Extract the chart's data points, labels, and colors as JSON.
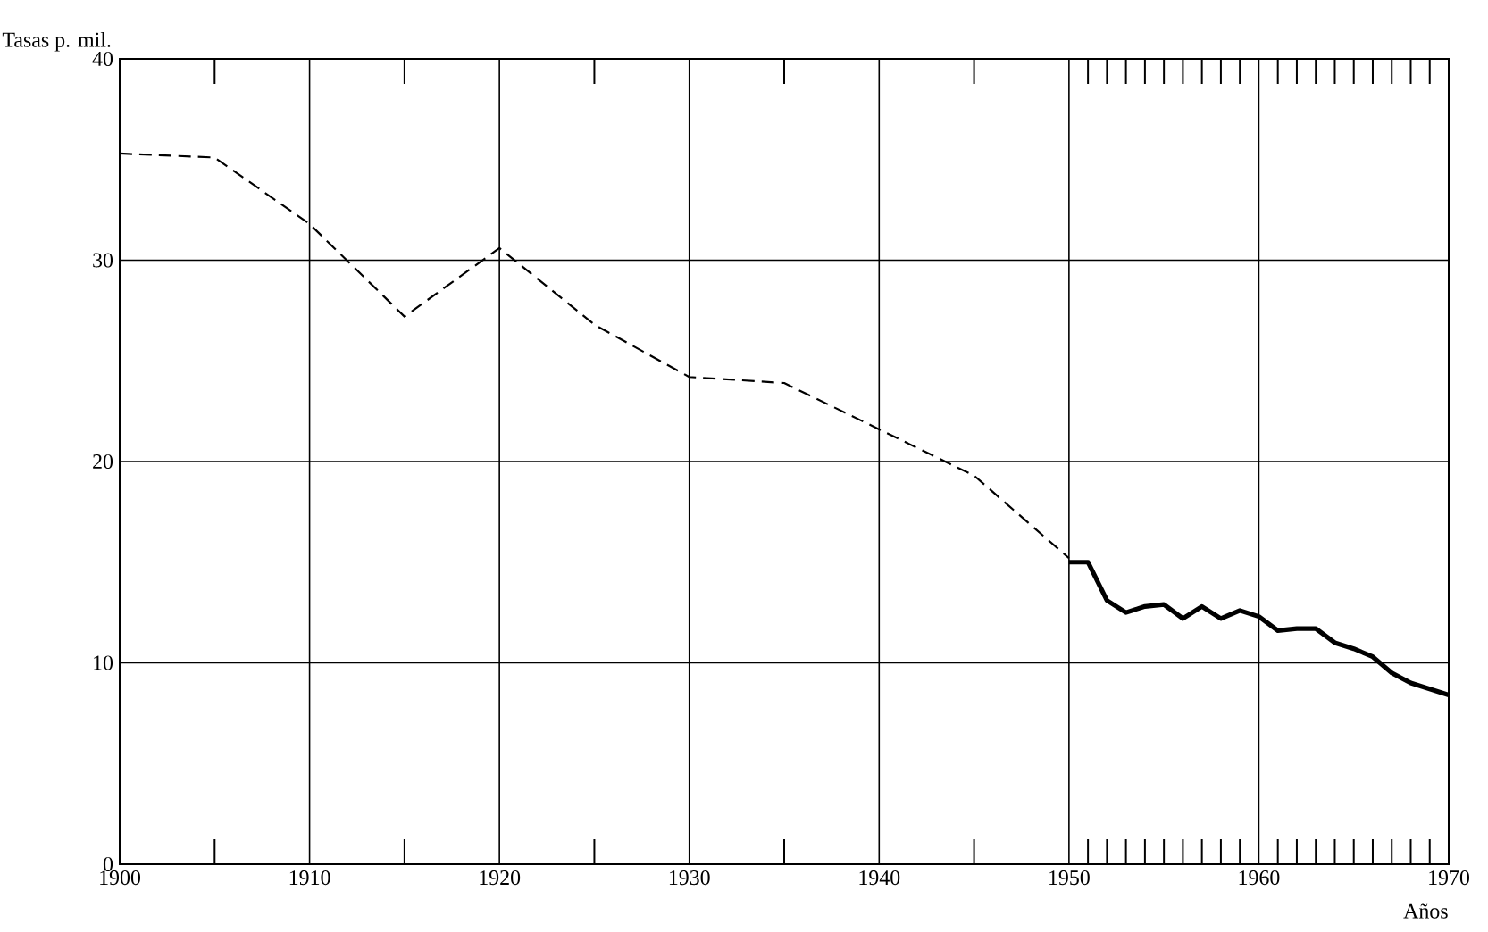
{
  "chart_data": {
    "type": "line",
    "xlabel": "Años",
    "ylabel": "Tasas p. mil.",
    "xlim": [
      1900,
      1970
    ],
    "ylim": [
      0,
      40
    ],
    "xticks": [
      1900,
      1910,
      1920,
      1930,
      1940,
      1950,
      1960,
      1970,
      {
        "value": 1905,
        "label": null
      },
      {
        "value": 1915,
        "label": null
      },
      {
        "value": 1925,
        "label": null
      },
      {
        "value": 1935,
        "label": null
      },
      {
        "value": 1945,
        "label": null
      },
      {
        "value": 1951,
        "label": null
      },
      {
        "value": 1952,
        "label": null
      },
      {
        "value": 1953,
        "label": null
      },
      {
        "value": 1954,
        "label": null
      },
      {
        "value": 1955,
        "label": null
      },
      {
        "value": 1956,
        "label": null
      },
      {
        "value": 1957,
        "label": null
      },
      {
        "value": 1958,
        "label": null
      },
      {
        "value": 1959,
        "label": null
      },
      {
        "value": 1961,
        "label": null
      },
      {
        "value": 1962,
        "label": null
      },
      {
        "value": 1963,
        "label": null
      },
      {
        "value": 1964,
        "label": null
      },
      {
        "value": 1965,
        "label": null
      },
      {
        "value": 1966,
        "label": null
      },
      {
        "value": 1967,
        "label": null
      },
      {
        "value": 1968,
        "label": null
      },
      {
        "value": 1969,
        "label": null
      }
    ],
    "yticks": [
      0,
      10,
      20,
      30,
      40
    ],
    "grid": true,
    "marker": "none",
    "series": [
      {
        "color": "#000000",
        "line_style": "dashed",
        "x": [
          1900,
          1905,
          1910,
          1915,
          1920,
          1925,
          1930,
          1935,
          1940,
          1945,
          1950
        ],
        "values": [
          35.3,
          35.1,
          31.8,
          27.2,
          30.6,
          26.8,
          24.2,
          23.9,
          21.6,
          19.3,
          15.2
        ]
      },
      {
        "color": "#000000",
        "line_style": "solid",
        "x": [
          1950,
          1951,
          1952,
          1953,
          1954,
          1955,
          1956,
          1957,
          1958,
          1959,
          1960,
          1961,
          1962,
          1963,
          1964,
          1965,
          1966,
          1967,
          1968,
          1969,
          1970
        ],
        "values": [
          15.0,
          15.0,
          13.1,
          12.5,
          12.8,
          12.9,
          12.2,
          12.8,
          12.2,
          12.6,
          12.3,
          11.6,
          11.7,
          11.7,
          11.0,
          10.7,
          10.3,
          9.5,
          9.0,
          8.7,
          8.4
        ]
      }
    ]
  }
}
